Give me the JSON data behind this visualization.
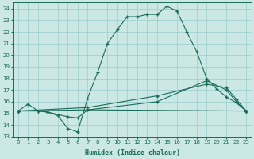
{
  "xlabel": "Humidex (Indice chaleur)",
  "xlim": [
    -0.5,
    23.5
  ],
  "ylim": [
    13,
    24.5
  ],
  "yticks": [
    13,
    14,
    15,
    16,
    17,
    18,
    19,
    20,
    21,
    22,
    23,
    24
  ],
  "xticks": [
    0,
    1,
    2,
    3,
    4,
    5,
    6,
    7,
    8,
    9,
    10,
    11,
    12,
    13,
    14,
    15,
    16,
    17,
    18,
    19,
    20,
    21,
    22,
    23
  ],
  "background_color": "#cce8e5",
  "grid_color": "#99cccc",
  "line_color": "#1a6b5a",
  "line1_x": [
    0,
    1,
    2,
    3,
    4,
    5,
    6,
    7,
    8,
    9,
    10,
    11,
    12,
    13,
    14,
    15,
    16,
    17,
    18,
    19,
    20,
    21,
    22,
    23
  ],
  "line1_y": [
    15.2,
    15.8,
    15.2,
    15.1,
    14.8,
    13.7,
    13.4,
    16.3,
    18.5,
    21.0,
    22.2,
    23.3,
    23.3,
    23.5,
    23.5,
    24.2,
    23.8,
    22.0,
    20.3,
    18.0,
    17.1,
    16.4,
    15.9,
    15.2
  ],
  "line2_x": [
    0,
    2,
    3,
    5,
    6,
    7,
    23
  ],
  "line2_y": [
    15.2,
    15.2,
    15.1,
    14.7,
    14.6,
    15.3,
    15.2
  ],
  "line3_x": [
    0,
    7,
    14,
    19,
    21,
    22,
    23
  ],
  "line3_y": [
    15.2,
    15.5,
    16.5,
    17.5,
    17.2,
    16.2,
    15.2
  ],
  "line4_x": [
    0,
    7,
    14,
    19,
    21,
    22,
    23
  ],
  "line4_y": [
    15.2,
    15.3,
    16.0,
    17.8,
    17.0,
    16.0,
    15.2
  ]
}
